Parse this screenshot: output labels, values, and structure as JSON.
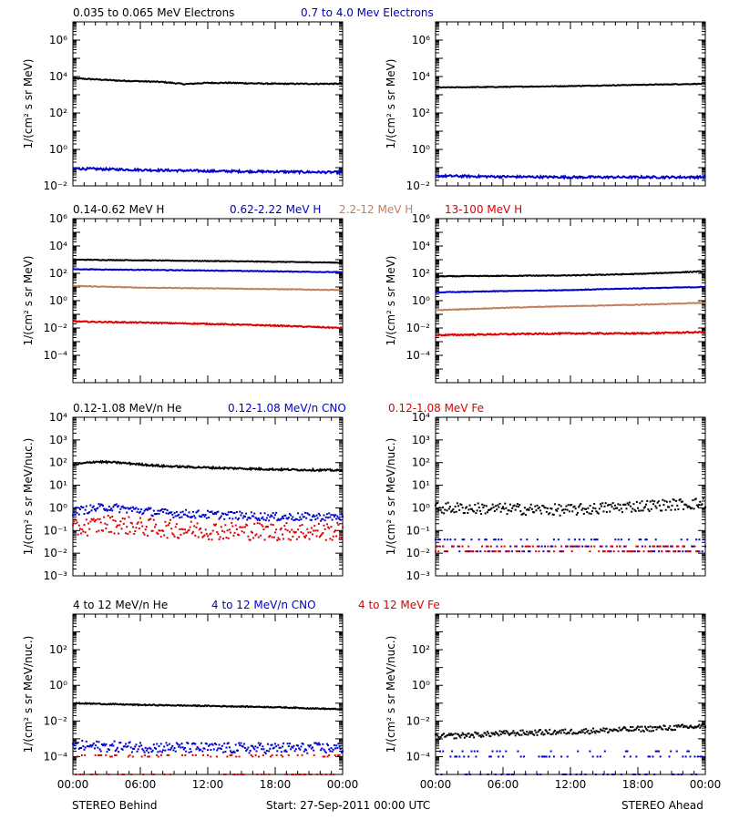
{
  "colors": {
    "black": "#000000",
    "blue": "#0000cc",
    "tan": "#c08060",
    "red": "#dd0000",
    "frame": "#000000"
  },
  "footer": {
    "left": "STEREO Behind",
    "center": "Start: 27-Sep-2011 00:00 UTC",
    "right": "STEREO Ahead"
  },
  "chart_data": [
    {
      "type": "scatter",
      "panel": "electrons-behind",
      "ylabel": "1/(cm² s sr MeV)",
      "yscale": "log",
      "ylim": [
        0.01,
        10000000
      ],
      "yticks": [
        {
          "v": 0.01,
          "label": "10⁻²"
        },
        {
          "v": 1,
          "label": "10⁰"
        },
        {
          "v": 100,
          "label": "10²"
        },
        {
          "v": 10000,
          "label": "10⁴"
        },
        {
          "v": 1000000,
          "label": "10⁶"
        }
      ],
      "xlim": [
        0,
        24
      ],
      "xtick_labels": [],
      "legend": [
        {
          "label": "0.035 to 0.065 MeV Electrons",
          "color": "#000000"
        },
        {
          "label": "0.7 to 4.0 Mev Electrons",
          "color": "#0000cc"
        }
      ],
      "series": [
        {
          "name": "0.035 to 0.065 MeV Electrons",
          "color": "#000000",
          "points": [
            [
              0,
              8000
            ],
            [
              2,
              7000
            ],
            [
              4,
              6000
            ],
            [
              6,
              5500
            ],
            [
              8,
              5000
            ],
            [
              10,
              3800
            ],
            [
              11,
              4200
            ],
            [
              12,
              4500
            ],
            [
              14,
              4500
            ],
            [
              16,
              4200
            ],
            [
              18,
              4000
            ],
            [
              20,
              4000
            ],
            [
              22,
              4000
            ],
            [
              24,
              4000
            ]
          ],
          "noise": 0.06,
          "style": "band"
        },
        {
          "name": "0.7 to 4.0 Mev Electrons",
          "color": "#0000cc",
          "points": [
            [
              0,
              0.09
            ],
            [
              6,
              0.075
            ],
            [
              12,
              0.065
            ],
            [
              18,
              0.06
            ],
            [
              24,
              0.055
            ]
          ],
          "noise": 0.12,
          "style": "band"
        }
      ]
    },
    {
      "type": "scatter",
      "panel": "electrons-ahead",
      "ylabel": "1/(cm² s sr MeV)",
      "yscale": "log",
      "ylim": [
        0.01,
        10000000
      ],
      "yticks": [
        {
          "v": 0.01,
          "label": "10⁻²"
        },
        {
          "v": 1,
          "label": "10⁰"
        },
        {
          "v": 100,
          "label": "10²"
        },
        {
          "v": 10000,
          "label": "10⁴"
        },
        {
          "v": 1000000,
          "label": "10⁶"
        }
      ],
      "xlim": [
        0,
        24
      ],
      "xtick_labels": [],
      "legend": [],
      "series": [
        {
          "name": "0.035 to 0.065 MeV Electrons",
          "color": "#000000",
          "points": [
            [
              0,
              2500
            ],
            [
              6,
              2700
            ],
            [
              12,
              3000
            ],
            [
              18,
              3500
            ],
            [
              24,
              4000
            ]
          ],
          "noise": 0.04,
          "style": "band"
        },
        {
          "name": "0.7 to 4.0 Mev Electrons",
          "color": "#0000cc",
          "points": [
            [
              0,
              0.035
            ],
            [
              6,
              0.032
            ],
            [
              12,
              0.03
            ],
            [
              18,
              0.03
            ],
            [
              24,
              0.03
            ]
          ],
          "noise": 0.12,
          "style": "band"
        }
      ]
    },
    {
      "type": "scatter",
      "panel": "protons-behind",
      "ylabel": "1/(cm² s sr MeV)",
      "yscale": "log",
      "ylim": [
        1e-06,
        1000000
      ],
      "yticks": [
        {
          "v": 0.0001,
          "label": "10⁻⁴"
        },
        {
          "v": 0.01,
          "label": "10⁻²"
        },
        {
          "v": 1,
          "label": "10⁰"
        },
        {
          "v": 100,
          "label": "10²"
        },
        {
          "v": 10000,
          "label": "10⁴"
        },
        {
          "v": 1000000,
          "label": "10⁶"
        }
      ],
      "xlim": [
        0,
        24
      ],
      "xtick_labels": [],
      "legend": [
        {
          "label": "0.14-0.62 MeV H",
          "color": "#000000"
        },
        {
          "label": "0.62-2.22 MeV H",
          "color": "#0000cc"
        },
        {
          "label": "2.2-12 MeV H",
          "color": "#c08060"
        },
        {
          "label": "13-100 MeV H",
          "color": "#dd0000"
        }
      ],
      "series": [
        {
          "name": "0.14-0.62 MeV H",
          "color": "#000000",
          "points": [
            [
              0,
              1000
            ],
            [
              6,
              900
            ],
            [
              12,
              800
            ],
            [
              18,
              700
            ],
            [
              24,
              600
            ]
          ],
          "noise": 0.05,
          "style": "band"
        },
        {
          "name": "0.62-2.22 MeV H",
          "color": "#0000cc",
          "points": [
            [
              0,
              200
            ],
            [
              6,
              180
            ],
            [
              12,
              160
            ],
            [
              18,
              140
            ],
            [
              24,
              120
            ]
          ],
          "noise": 0.05,
          "style": "band"
        },
        {
          "name": "2.2-12 MeV H",
          "color": "#c08060",
          "points": [
            [
              0,
              12
            ],
            [
              6,
              9
            ],
            [
              12,
              8
            ],
            [
              18,
              7
            ],
            [
              24,
              6
            ]
          ],
          "noise": 0.05,
          "style": "band"
        },
        {
          "name": "13-100 MeV H",
          "color": "#dd0000",
          "points": [
            [
              0,
              0.03
            ],
            [
              6,
              0.025
            ],
            [
              12,
              0.02
            ],
            [
              18,
              0.015
            ],
            [
              24,
              0.01
            ]
          ],
          "noise": 0.08,
          "style": "band"
        }
      ]
    },
    {
      "type": "scatter",
      "panel": "protons-ahead",
      "ylabel": "1/(cm² s sr MeV)",
      "yscale": "log",
      "ylim": [
        1e-06,
        1000000
      ],
      "yticks": [
        {
          "v": 0.0001,
          "label": "10⁻⁴"
        },
        {
          "v": 0.01,
          "label": "10⁻²"
        },
        {
          "v": 1,
          "label": "10⁰"
        },
        {
          "v": 100,
          "label": "10²"
        },
        {
          "v": 10000,
          "label": "10⁴"
        },
        {
          "v": 1000000,
          "label": "10⁶"
        }
      ],
      "xlim": [
        0,
        24
      ],
      "xtick_labels": [],
      "legend": [],
      "series": [
        {
          "name": "0.14-0.62 MeV H",
          "color": "#000000",
          "points": [
            [
              0,
              60
            ],
            [
              6,
              65
            ],
            [
              12,
              70
            ],
            [
              18,
              90
            ],
            [
              24,
              140
            ]
          ],
          "noise": 0.06,
          "style": "band"
        },
        {
          "name": "0.62-2.22 MeV H",
          "color": "#0000cc",
          "points": [
            [
              0,
              4
            ],
            [
              6,
              5
            ],
            [
              12,
              6
            ],
            [
              18,
              8
            ],
            [
              24,
              10
            ]
          ],
          "noise": 0.05,
          "style": "band"
        },
        {
          "name": "2.2-12 MeV H",
          "color": "#c08060",
          "points": [
            [
              0,
              0.2
            ],
            [
              6,
              0.3
            ],
            [
              12,
              0.4
            ],
            [
              18,
              0.5
            ],
            [
              24,
              0.7
            ]
          ],
          "noise": 0.05,
          "style": "band"
        },
        {
          "name": "13-100 MeV H",
          "color": "#dd0000",
          "points": [
            [
              0,
              0.003
            ],
            [
              6,
              0.0035
            ],
            [
              12,
              0.004
            ],
            [
              18,
              0.004
            ],
            [
              24,
              0.005
            ]
          ],
          "noise": 0.1,
          "style": "band"
        }
      ]
    },
    {
      "type": "scatter",
      "panel": "heavy-low-behind",
      "ylabel": "1/(cm² s sr MeV/nuc.)",
      "yscale": "log",
      "ylim": [
        0.001,
        10000
      ],
      "yticks": [
        {
          "v": 0.001,
          "label": "10⁻³"
        },
        {
          "v": 0.01,
          "label": "10⁻²"
        },
        {
          "v": 0.1,
          "label": "10⁻¹"
        },
        {
          "v": 1,
          "label": "10⁰"
        },
        {
          "v": 10,
          "label": "10¹"
        },
        {
          "v": 100,
          "label": "10²"
        },
        {
          "v": 1000,
          "label": "10³"
        },
        {
          "v": 10000,
          "label": "10⁴"
        }
      ],
      "xlim": [
        0,
        24
      ],
      "xtick_labels": [],
      "legend": [
        {
          "label": "0.12-1.08 MeV/n He",
          "color": "#000000"
        },
        {
          "label": "0.12-1.08 MeV/n CNO",
          "color": "#0000cc"
        },
        {
          "label": "0.12-1.08 MeV Fe",
          "color": "#dd0000"
        }
      ],
      "series": [
        {
          "name": "0.12-1.08 MeV/n He",
          "color": "#000000",
          "points": [
            [
              0,
              80
            ],
            [
              2,
              110
            ],
            [
              4,
              100
            ],
            [
              8,
              70
            ],
            [
              12,
              60
            ],
            [
              18,
              50
            ],
            [
              24,
              45
            ]
          ],
          "noise": 0.08,
          "style": "band"
        },
        {
          "name": "0.12-1.08 MeV/n CNO",
          "color": "#0000cc",
          "points": [
            [
              0,
              0.7
            ],
            [
              3,
              1.1
            ],
            [
              8,
              0.6
            ],
            [
              12,
              0.5
            ],
            [
              18,
              0.4
            ],
            [
              24,
              0.4
            ]
          ],
          "noise": 0.18,
          "style": "scatter"
        },
        {
          "name": "0.12-1.08 MeV Fe",
          "color": "#dd0000",
          "points": [
            [
              0,
              0.12
            ],
            [
              3,
              0.2
            ],
            [
              8,
              0.12
            ],
            [
              12,
              0.1
            ],
            [
              18,
              0.09
            ],
            [
              24,
              0.09
            ]
          ],
          "noise": 0.4,
          "style": "scatter"
        }
      ]
    },
    {
      "type": "scatter",
      "panel": "heavy-low-ahead",
      "ylabel": "1/(cm² s sr MeV/nuc.)",
      "yscale": "log",
      "ylim": [
        0.001,
        10000
      ],
      "yticks": [
        {
          "v": 0.001,
          "label": "10⁻³"
        },
        {
          "v": 0.01,
          "label": "10⁻²"
        },
        {
          "v": 0.1,
          "label": "10⁻¹"
        },
        {
          "v": 1,
          "label": "10⁰"
        },
        {
          "v": 10,
          "label": "10¹"
        },
        {
          "v": 100,
          "label": "10²"
        },
        {
          "v": 1000,
          "label": "10³"
        },
        {
          "v": 10000,
          "label": "10⁴"
        }
      ],
      "xlim": [
        0,
        24
      ],
      "xtick_labels": [],
      "legend": [],
      "series": [
        {
          "name": "0.12-1.08 MeV/n He",
          "color": "#000000",
          "points": [
            [
              0,
              1.0
            ],
            [
              6,
              0.9
            ],
            [
              12,
              0.8
            ],
            [
              18,
              1.2
            ],
            [
              24,
              1.6
            ]
          ],
          "noise": 0.25,
          "style": "scatter"
        },
        {
          "name": "0.12-1.08 MeV/n CNO",
          "color": "#0000cc",
          "points": [
            [
              0,
              0.02
            ],
            [
              12,
              0.02
            ],
            [
              24,
              0.02
            ]
          ],
          "noise": 0.0,
          "style": "sparse",
          "levels": [
            0.012,
            0.02,
            0.04
          ]
        },
        {
          "name": "0.12-1.08 MeV Fe",
          "color": "#dd0000",
          "points": [
            [
              0,
              0.012
            ],
            [
              12,
              0.012
            ],
            [
              24,
              0.012
            ]
          ],
          "noise": 0.0,
          "style": "sparse",
          "levels": [
            0.012,
            0.02
          ]
        }
      ]
    },
    {
      "type": "scatter",
      "panel": "heavy-high-behind",
      "ylabel": "1/(cm² s sr MeV/nuc.)",
      "yscale": "log",
      "ylim": [
        1e-05,
        10000
      ],
      "yticks": [
        {
          "v": 0.0001,
          "label": "10⁻⁴"
        },
        {
          "v": 0.01,
          "label": "10⁻²"
        },
        {
          "v": 1,
          "label": "10⁰"
        },
        {
          "v": 100,
          "label": "10²"
        }
      ],
      "xlim": [
        0,
        24
      ],
      "xtick_labels": [
        "00:00",
        "06:00",
        "12:00",
        "18:00",
        "00:00"
      ],
      "legend": [
        {
          "label": "4 to 12 MeV/n He",
          "color": "#000000"
        },
        {
          "label": "4 to 12 MeV/n CNO",
          "color": "#0000cc"
        },
        {
          "label": "4 to 12 MeV Fe",
          "color": "#dd0000"
        }
      ],
      "series": [
        {
          "name": "4 to 12 MeV/n He",
          "color": "#000000",
          "points": [
            [
              0,
              0.1
            ],
            [
              6,
              0.08
            ],
            [
              12,
              0.07
            ],
            [
              18,
              0.06
            ],
            [
              24,
              0.045
            ]
          ],
          "noise": 0.06,
          "style": "band"
        },
        {
          "name": "4 to 12 MeV/n CNO",
          "color": "#0000cc",
          "points": [
            [
              0,
              0.0004
            ],
            [
              12,
              0.0003
            ],
            [
              24,
              0.0003
            ]
          ],
          "noise": 0.3,
          "style": "scatter"
        },
        {
          "name": "4 to 12 MeV Fe",
          "color": "#dd0000",
          "points": [
            [
              0,
              0.0001
            ],
            [
              12,
              0.0001
            ],
            [
              24,
              0.0001
            ]
          ],
          "noise": 0.0,
          "style": "sparse",
          "levels": [
            1e-05,
            0.0001,
            0.00012
          ]
        }
      ]
    },
    {
      "type": "scatter",
      "panel": "heavy-high-ahead",
      "ylabel": "1/(cm² s sr MeV/nuc.)",
      "yscale": "log",
      "ylim": [
        1e-05,
        10000
      ],
      "yticks": [
        {
          "v": 0.0001,
          "label": "10⁻⁴"
        },
        {
          "v": 0.01,
          "label": "10⁻²"
        },
        {
          "v": 1,
          "label": "10⁰"
        },
        {
          "v": 100,
          "label": "10²"
        }
      ],
      "xlim": [
        0,
        24
      ],
      "xtick_labels": [
        "00:00",
        "06:00",
        "12:00",
        "18:00",
        "00:00"
      ],
      "legend": [],
      "series": [
        {
          "name": "4 to 12 MeV/n He",
          "color": "#000000",
          "points": [
            [
              0,
              0.0013
            ],
            [
              6,
              0.002
            ],
            [
              12,
              0.0025
            ],
            [
              18,
              0.0035
            ],
            [
              24,
              0.005
            ]
          ],
          "noise": 0.15,
          "style": "scatter"
        },
        {
          "name": "4 to 12 MeV/n CNO",
          "color": "#0000cc",
          "points": [
            [
              0,
              0.0001
            ],
            [
              12,
              0.0001
            ],
            [
              24,
              0.0001
            ]
          ],
          "noise": 0.0,
          "style": "sparse",
          "levels": [
            1e-05,
            0.0001,
            0.0002
          ]
        }
      ]
    }
  ]
}
